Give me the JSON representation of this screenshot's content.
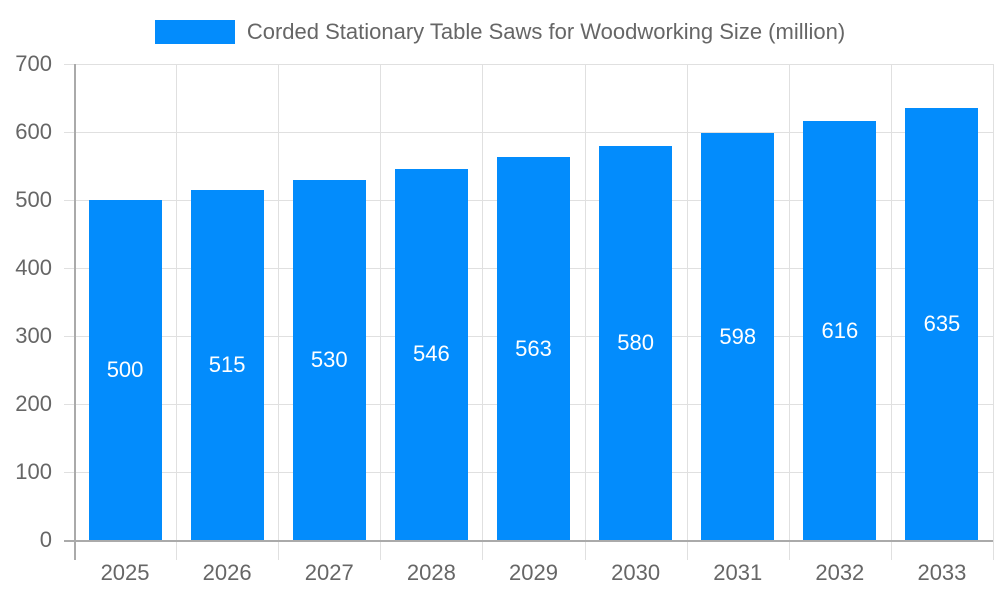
{
  "colors": {
    "bar": "#038cfc",
    "grid": "#e0e0e0",
    "axis": "#aaaaaa",
    "text": "#666666"
  },
  "legend": {
    "label": "Corded Stationary Table Saws for Woodworking Size (million)"
  },
  "chart_data": {
    "type": "bar",
    "title": "",
    "xlabel": "",
    "ylabel": "",
    "categories": [
      "2025",
      "2026",
      "2027",
      "2028",
      "2029",
      "2030",
      "2031",
      "2032",
      "2033"
    ],
    "series": [
      {
        "name": "Corded Stationary Table Saws for Woodworking Size (million)",
        "values": [
          500,
          515,
          530,
          546,
          563,
          580,
          598,
          616,
          635
        ]
      }
    ],
    "ylim": [
      0,
      700
    ],
    "yticks": [
      0,
      100,
      200,
      300,
      400,
      500,
      600,
      700
    ],
    "grid": true,
    "legend_position": "top"
  }
}
